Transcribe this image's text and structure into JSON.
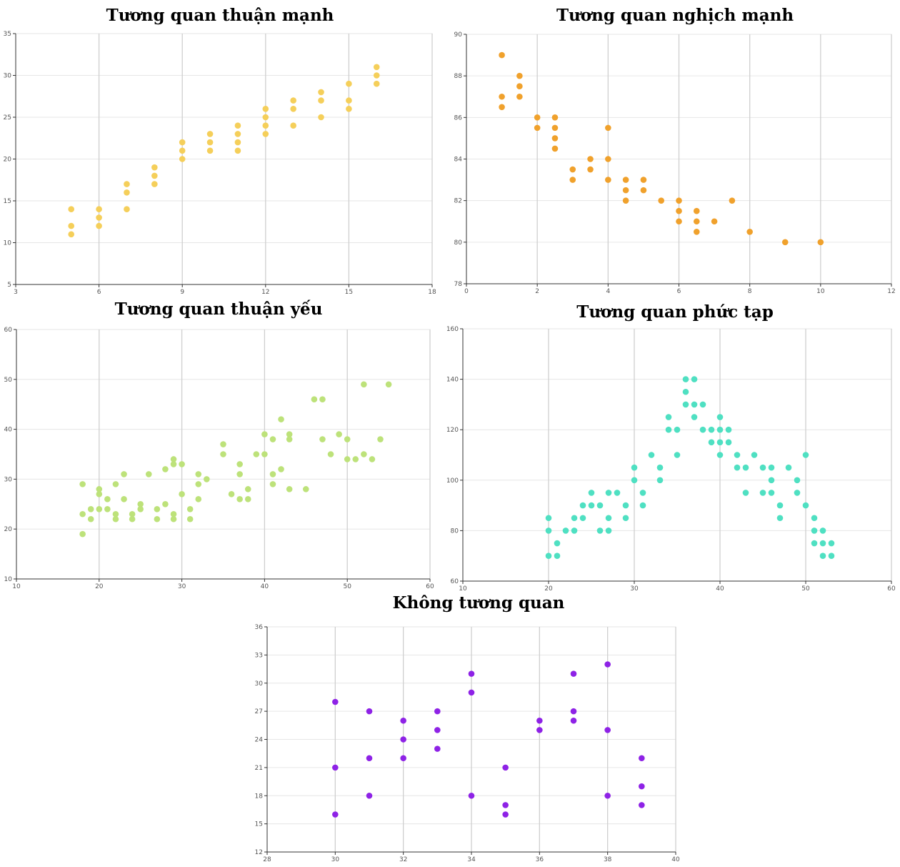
{
  "chart_data": [
    {
      "id": "strong-positive",
      "type": "scatter",
      "title": "Tương quan thuận mạnh",
      "color": "#f5cf5a",
      "xlim": [
        3,
        18
      ],
      "ylim": [
        5,
        35
      ],
      "xticks": [
        3,
        6,
        9,
        12,
        15,
        18
      ],
      "yticks": [
        5,
        10,
        15,
        20,
        25,
        30,
        35
      ],
      "grid": true,
      "points": [
        [
          5,
          14
        ],
        [
          5,
          12
        ],
        [
          5,
          11
        ],
        [
          6,
          14
        ],
        [
          6,
          13
        ],
        [
          6,
          12
        ],
        [
          7,
          17
        ],
        [
          7,
          16
        ],
        [
          7,
          14
        ],
        [
          8,
          19
        ],
        [
          8,
          18
        ],
        [
          8,
          17
        ],
        [
          9,
          22
        ],
        [
          9,
          21
        ],
        [
          9,
          20
        ],
        [
          10,
          23
        ],
        [
          10,
          22
        ],
        [
          10,
          21
        ],
        [
          11,
          24
        ],
        [
          11,
          23
        ],
        [
          11,
          22
        ],
        [
          11,
          21
        ],
        [
          12,
          26
        ],
        [
          12,
          25
        ],
        [
          12,
          24
        ],
        [
          12,
          23
        ],
        [
          13,
          27
        ],
        [
          13,
          26
        ],
        [
          13,
          24
        ],
        [
          14,
          28
        ],
        [
          14,
          27
        ],
        [
          14,
          25
        ],
        [
          15,
          29
        ],
        [
          15,
          27
        ],
        [
          15,
          26
        ],
        [
          16,
          31
        ],
        [
          16,
          30
        ],
        [
          16,
          29
        ]
      ]
    },
    {
      "id": "strong-negative",
      "type": "scatter",
      "title": "Tương quan nghịch mạnh",
      "color": "#f0a12c",
      "xlim": [
        0,
        12
      ],
      "ylim": [
        78,
        90
      ],
      "xticks": [
        0,
        2,
        4,
        6,
        8,
        10,
        12
      ],
      "yticks": [
        78,
        80,
        82,
        84,
        86,
        88,
        90
      ],
      "grid": true,
      "points": [
        [
          1,
          89
        ],
        [
          1,
          87
        ],
        [
          1,
          86.5
        ],
        [
          1.5,
          88
        ],
        [
          1.5,
          87.5
        ],
        [
          1.5,
          87
        ],
        [
          2,
          86
        ],
        [
          2,
          85.5
        ],
        [
          2.5,
          86
        ],
        [
          2.5,
          85.5
        ],
        [
          2.5,
          85
        ],
        [
          2.5,
          84.5
        ],
        [
          3,
          83.5
        ],
        [
          3,
          83
        ],
        [
          3.5,
          84
        ],
        [
          3.5,
          83.5
        ],
        [
          4,
          85.5
        ],
        [
          4,
          84
        ],
        [
          4,
          83
        ],
        [
          4.5,
          83
        ],
        [
          4.5,
          82.5
        ],
        [
          4.5,
          82
        ],
        [
          5,
          83
        ],
        [
          5,
          82.5
        ],
        [
          5.5,
          82
        ],
        [
          6,
          82
        ],
        [
          6,
          81.5
        ],
        [
          6,
          81
        ],
        [
          6.5,
          81.5
        ],
        [
          6.5,
          81
        ],
        [
          6.5,
          80.5
        ],
        [
          7,
          81
        ],
        [
          7.5,
          82
        ],
        [
          8,
          80.5
        ],
        [
          9,
          80
        ],
        [
          10,
          80
        ]
      ]
    },
    {
      "id": "weak-positive",
      "type": "scatter",
      "title": "Tương quan thuận yếu",
      "color": "#bde27a",
      "xlim": [
        10,
        60
      ],
      "ylim": [
        10,
        60
      ],
      "xticks": [
        10,
        20,
        30,
        40,
        50,
        60
      ],
      "yticks": [
        10,
        20,
        30,
        40,
        50,
        60
      ],
      "grid": true,
      "points": [
        [
          18,
          29
        ],
        [
          18,
          23
        ],
        [
          18,
          19
        ],
        [
          19,
          24
        ],
        [
          19,
          22
        ],
        [
          20,
          28
        ],
        [
          20,
          27
        ],
        [
          20,
          24
        ],
        [
          21,
          26
        ],
        [
          21,
          24
        ],
        [
          22,
          29
        ],
        [
          22,
          23
        ],
        [
          22,
          22
        ],
        [
          23,
          31
        ],
        [
          23,
          26
        ],
        [
          24,
          23
        ],
        [
          24,
          22
        ],
        [
          25,
          25
        ],
        [
          25,
          24
        ],
        [
          26,
          31
        ],
        [
          27,
          24
        ],
        [
          27,
          22
        ],
        [
          28,
          32
        ],
        [
          28,
          25
        ],
        [
          29,
          34
        ],
        [
          29,
          33
        ],
        [
          29,
          23
        ],
        [
          29,
          22
        ],
        [
          30,
          33
        ],
        [
          30,
          27
        ],
        [
          31,
          24
        ],
        [
          31,
          22
        ],
        [
          32,
          31
        ],
        [
          32,
          29
        ],
        [
          32,
          26
        ],
        [
          33,
          30
        ],
        [
          35,
          37
        ],
        [
          35,
          35
        ],
        [
          36,
          27
        ],
        [
          37,
          33
        ],
        [
          37,
          31
        ],
        [
          37,
          26
        ],
        [
          38,
          28
        ],
        [
          38,
          26
        ],
        [
          39,
          35
        ],
        [
          40,
          39
        ],
        [
          40,
          35
        ],
        [
          41,
          38
        ],
        [
          41,
          31
        ],
        [
          41,
          29
        ],
        [
          42,
          42
        ],
        [
          42,
          32
        ],
        [
          43,
          39
        ],
        [
          43,
          38
        ],
        [
          43,
          28
        ],
        [
          45,
          28
        ],
        [
          46,
          46
        ],
        [
          47,
          46
        ],
        [
          47,
          38
        ],
        [
          48,
          35
        ],
        [
          49,
          39
        ],
        [
          50,
          38
        ],
        [
          50,
          34
        ],
        [
          51,
          34
        ],
        [
          52,
          49
        ],
        [
          52,
          35
        ],
        [
          53,
          34
        ],
        [
          54,
          38
        ],
        [
          55,
          49
        ]
      ]
    },
    {
      "id": "complex",
      "type": "scatter",
      "title": "Tương quan phức tạp",
      "color": "#4fe0c2",
      "xlim": [
        10,
        60
      ],
      "ylim": [
        60,
        160
      ],
      "xticks": [
        10,
        20,
        30,
        40,
        50,
        60
      ],
      "yticks": [
        60,
        80,
        100,
        120,
        140,
        160
      ],
      "grid": true,
      "points": [
        [
          20,
          85
        ],
        [
          20,
          80
        ],
        [
          20,
          70
        ],
        [
          21,
          75
        ],
        [
          21,
          70
        ],
        [
          22,
          80
        ],
        [
          23,
          85
        ],
        [
          23,
          80
        ],
        [
          24,
          90
        ],
        [
          24,
          85
        ],
        [
          25,
          95
        ],
        [
          25,
          90
        ],
        [
          26,
          90
        ],
        [
          26,
          80
        ],
        [
          27,
          95
        ],
        [
          27,
          85
        ],
        [
          27,
          80
        ],
        [
          28,
          95
        ],
        [
          29,
          90
        ],
        [
          29,
          85
        ],
        [
          30,
          105
        ],
        [
          30,
          100
        ],
        [
          31,
          95
        ],
        [
          31,
          90
        ],
        [
          32,
          110
        ],
        [
          33,
          105
        ],
        [
          33,
          100
        ],
        [
          34,
          125
        ],
        [
          34,
          120
        ],
        [
          35,
          120
        ],
        [
          35,
          110
        ],
        [
          36,
          140
        ],
        [
          36,
          135
        ],
        [
          36,
          130
        ],
        [
          37,
          140
        ],
        [
          37,
          130
        ],
        [
          37,
          125
        ],
        [
          38,
          130
        ],
        [
          38,
          120
        ],
        [
          39,
          120
        ],
        [
          39,
          115
        ],
        [
          40,
          125
        ],
        [
          40,
          120
        ],
        [
          40,
          115
        ],
        [
          40,
          110
        ],
        [
          41,
          120
        ],
        [
          41,
          115
        ],
        [
          42,
          110
        ],
        [
          42,
          105
        ],
        [
          43,
          105
        ],
        [
          43,
          95
        ],
        [
          44,
          110
        ],
        [
          45,
          105
        ],
        [
          45,
          95
        ],
        [
          46,
          105
        ],
        [
          46,
          100
        ],
        [
          46,
          95
        ],
        [
          47,
          90
        ],
        [
          47,
          85
        ],
        [
          48,
          105
        ],
        [
          49,
          100
        ],
        [
          49,
          95
        ],
        [
          50,
          110
        ],
        [
          50,
          90
        ],
        [
          51,
          85
        ],
        [
          51,
          80
        ],
        [
          51,
          75
        ],
        [
          52,
          80
        ],
        [
          52,
          75
        ],
        [
          52,
          70
        ],
        [
          53,
          75
        ],
        [
          53,
          70
        ]
      ]
    },
    {
      "id": "no-correlation",
      "type": "scatter",
      "title": "Không tương quan",
      "color": "#8e22e6",
      "xlim": [
        28,
        40
      ],
      "ylim": [
        12,
        36
      ],
      "xticks": [
        28,
        30,
        32,
        34,
        36,
        38,
        40
      ],
      "yticks": [
        12,
        15,
        18,
        21,
        24,
        27,
        30,
        33,
        36
      ],
      "grid": true,
      "points": [
        [
          30,
          28
        ],
        [
          30,
          21
        ],
        [
          30,
          16
        ],
        [
          31,
          27
        ],
        [
          31,
          22
        ],
        [
          31,
          18
        ],
        [
          32,
          26
        ],
        [
          32,
          24
        ],
        [
          32,
          22
        ],
        [
          33,
          27
        ],
        [
          33,
          25
        ],
        [
          33,
          23
        ],
        [
          34,
          31
        ],
        [
          34,
          29
        ],
        [
          34,
          18
        ],
        [
          35,
          21
        ],
        [
          35,
          17
        ],
        [
          35,
          16
        ],
        [
          36,
          26
        ],
        [
          36,
          25
        ],
        [
          37,
          31
        ],
        [
          37,
          27
        ],
        [
          37,
          26
        ],
        [
          38,
          32
        ],
        [
          38,
          25
        ],
        [
          38,
          18
        ],
        [
          39,
          22
        ],
        [
          39,
          19
        ],
        [
          39,
          17
        ]
      ]
    }
  ]
}
